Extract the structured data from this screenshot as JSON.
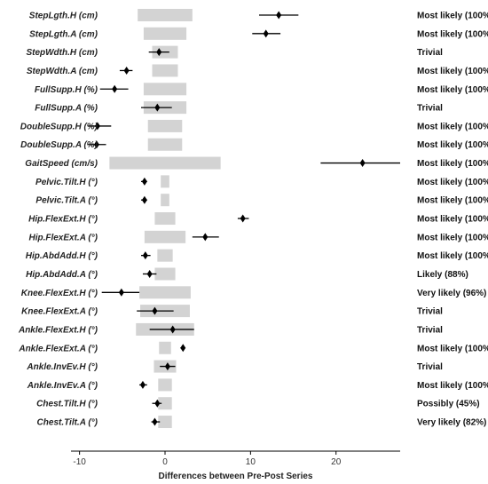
{
  "chart_data": {
    "type": "forest",
    "xlabel": "Differences between Pre-Post Series",
    "xlim": [
      -11,
      27.5
    ],
    "xticks": [
      -10,
      0,
      10,
      20
    ],
    "grid": false,
    "colors": {
      "band": "#d3d3d3",
      "marker": "#000000",
      "axis": "#000000"
    },
    "rows": [
      {
        "label": "StepLgth.H (cm)",
        "band": [
          -3.2,
          3.2
        ],
        "estimate": 13.3,
        "ci": [
          11.0,
          15.6
        ],
        "effect": "Most likely (100%)"
      },
      {
        "label": "StepLgth.A (cm)",
        "band": [
          -2.5,
          2.5
        ],
        "estimate": 11.8,
        "ci": [
          10.2,
          13.5
        ],
        "effect": "Most likely (100%)"
      },
      {
        "label": "StepWdth.H (cm)",
        "band": [
          -1.5,
          1.5
        ],
        "estimate": -0.7,
        "ci": [
          -1.9,
          0.5
        ],
        "effect": "Trivial"
      },
      {
        "label": "StepWdth.A (cm)",
        "band": [
          -1.5,
          1.5
        ],
        "estimate": -4.5,
        "ci": [
          -5.3,
          -3.8
        ],
        "effect": "Most likely (100%)"
      },
      {
        "label": "FullSupp.H (%)",
        "band": [
          -2.5,
          2.5
        ],
        "estimate": -5.9,
        "ci": [
          -7.6,
          -4.3
        ],
        "effect": "Most likely (100%)"
      },
      {
        "label": "FullSupp.A (%)",
        "band": [
          -2.5,
          2.5
        ],
        "estimate": -0.9,
        "ci": [
          -2.8,
          0.8
        ],
        "effect": "Trivial"
      },
      {
        "label": "DoubleSupp.H (%)",
        "band": [
          -2.0,
          2.0
        ],
        "estimate": -7.9,
        "ci": [
          -9.0,
          -6.3
        ],
        "effect": "Most likely (100%)"
      },
      {
        "label": "DoubleSupp.A (%)",
        "band": [
          -2.0,
          2.0
        ],
        "estimate": -8.0,
        "ci": [
          -9.1,
          -6.9
        ],
        "effect": "Most likely (100%)"
      },
      {
        "label": "GaitSpeed (cm/s)",
        "band": [
          -6.5,
          6.5
        ],
        "estimate": 23.1,
        "ci": [
          18.2,
          27.5
        ],
        "effect": "Most likely (100%)"
      },
      {
        "label": "Pelvic.Tilt.H (°)",
        "band": [
          -0.5,
          0.5
        ],
        "estimate": -2.4,
        "ci": [
          -2.8,
          -2.1
        ],
        "effect": "Most likely (100%)"
      },
      {
        "label": "Pelvic.Tilt.A (°)",
        "band": [
          -0.5,
          0.5
        ],
        "estimate": -2.4,
        "ci": [
          -2.8,
          -2.1
        ],
        "effect": "Most likely (100%)"
      },
      {
        "label": "Hip.FlexExt.H (°)",
        "band": [
          -1.2,
          1.2
        ],
        "estimate": 9.1,
        "ci": [
          8.5,
          9.8
        ],
        "effect": "Most likely (100%)"
      },
      {
        "label": "Hip.FlexExt.A (°)",
        "band": [
          -2.4,
          2.4
        ],
        "estimate": 4.7,
        "ci": [
          3.2,
          6.3
        ],
        "effect": "Most likely (100%)"
      },
      {
        "label": "Hip.AbdAdd.H (°)",
        "band": [
          -0.9,
          0.9
        ],
        "estimate": -2.3,
        "ci": [
          -2.8,
          -1.7
        ],
        "effect": "Most likely (100%)"
      },
      {
        "label": "Hip.AbdAdd.A (°)",
        "band": [
          -1.2,
          1.2
        ],
        "estimate": -1.8,
        "ci": [
          -2.6,
          -1.0
        ],
        "effect": "Likely (88%)"
      },
      {
        "label": "Knee.FlexExt.H (°)",
        "band": [
          -3.0,
          3.0
        ],
        "estimate": -5.1,
        "ci": [
          -7.4,
          -3.0
        ],
        "effect": "Very likely (96%)"
      },
      {
        "label": "Knee.FlexExt.A (°)",
        "band": [
          -2.9,
          2.9
        ],
        "estimate": -1.2,
        "ci": [
          -3.3,
          1.0
        ],
        "effect": "Trivial"
      },
      {
        "label": "Ankle.FlexExt.H (°)",
        "band": [
          -3.4,
          3.4
        ],
        "estimate": 0.9,
        "ci": [
          -1.8,
          3.4
        ],
        "effect": "Trivial"
      },
      {
        "label": "Ankle.FlexExt.A (°)",
        "band": [
          -0.7,
          0.7
        ],
        "estimate": 2.1,
        "ci": [
          1.8,
          2.3
        ],
        "effect": "Most likely (100%)"
      },
      {
        "label": "Ankle.InvEv.H (°)",
        "band": [
          -1.3,
          1.3
        ],
        "estimate": 0.3,
        "ci": [
          -0.6,
          1.2
        ],
        "effect": "Trivial"
      },
      {
        "label": "Ankle.InvEv.A (°)",
        "band": [
          -0.8,
          0.8
        ],
        "estimate": -2.6,
        "ci": [
          -3.0,
          -2.1
        ],
        "effect": "Most likely (100%)"
      },
      {
        "label": "Chest.Tilt.H (°)",
        "band": [
          -0.8,
          0.8
        ],
        "estimate": -0.9,
        "ci": [
          -1.5,
          -0.4
        ],
        "effect": "Possibly (45%)"
      },
      {
        "label": "Chest.Tilt.A (°)",
        "band": [
          -0.8,
          0.8
        ],
        "estimate": -1.2,
        "ci": [
          -1.6,
          -0.6
        ],
        "effect": "Very likely (82%)"
      }
    ]
  }
}
